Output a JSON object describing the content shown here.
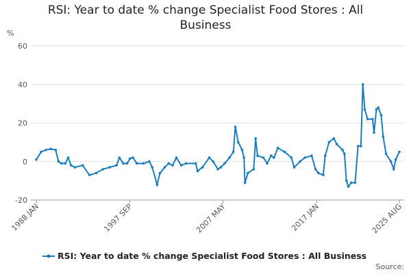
{
  "chart_data": {
    "type": "line",
    "title": "RSI: Year to date % change Specialist Food Stores : All Business",
    "y_label": "%",
    "source": "Source:",
    "xlim": [
      1988.0,
      2025.58
    ],
    "xticks": [
      {
        "value": 1988.0,
        "label": "1988 JAN"
      },
      {
        "value": 1997.67,
        "label": "1997 SEP"
      },
      {
        "value": 2007.33,
        "label": "2007 MAY"
      },
      {
        "value": 2017.0,
        "label": "2017 JAN"
      },
      {
        "value": 2025.58,
        "label": "2025 AUG"
      }
    ],
    "ylim": [
      -20,
      60
    ],
    "yticks": [
      -20,
      0,
      20,
      40,
      60
    ],
    "grid": true,
    "legend": "bottom",
    "x": [
      1988.0,
      1988.5,
      1989.0,
      1989.5,
      1990.0,
      1990.3,
      1990.6,
      1991.0,
      1991.3,
      1991.6,
      1992.0,
      1992.8,
      1993.5,
      1994.2,
      1994.9,
      1995.6,
      1996.3,
      1996.6,
      1997.0,
      1997.4,
      1997.7,
      1998.0,
      1998.4,
      1999.1,
      1999.7,
      2000.0,
      2000.5,
      2000.8,
      2001.3,
      2001.7,
      2002.1,
      2002.5,
      2003.0,
      2003.5,
      2004.5,
      2004.7,
      2005.2,
      2005.9,
      2006.3,
      2006.8,
      2007.1,
      2007.5,
      2008.0,
      2008.4,
      2008.6,
      2008.9,
      2009.3,
      2009.5,
      2009.6,
      2009.9,
      2010.5,
      2010.7,
      2010.9,
      2011.5,
      2011.9,
      2012.3,
      2012.6,
      2013.0,
      2013.7,
      2014.4,
      2014.7,
      2015.3,
      2015.8,
      2016.5,
      2016.9,
      2017.2,
      2017.7,
      2017.9,
      2018.3,
      2018.8,
      2019.1,
      2019.7,
      2019.9,
      2020.1,
      2020.3,
      2020.6,
      2021.0,
      2021.3,
      2021.6,
      2021.8,
      2022.0,
      2022.3,
      2022.8,
      2022.96,
      2023.2,
      2023.4,
      2023.7,
      2023.9,
      2024.2,
      2024.7,
      2025.0,
      2025.2,
      2025.58
    ],
    "series": [
      {
        "name": "RSI: Year to date % change Specialist Food Stores : All Business",
        "color": "#1a7dc0",
        "values": [
          1,
          5,
          6,
          6.5,
          6,
          0,
          -1,
          -1,
          2,
          -2,
          -3,
          -2,
          -7,
          -6,
          -4,
          -3,
          -2,
          2,
          -1,
          -1,
          1.5,
          2,
          -1,
          -1,
          0,
          -3,
          -12,
          -6,
          -3,
          -1,
          -2,
          2,
          -2,
          -1,
          -1,
          -5,
          -3,
          2,
          0,
          -4,
          -3,
          -1,
          2,
          5,
          18,
          10,
          6,
          2,
          -11,
          -6,
          -4,
          12,
          3,
          2,
          -1,
          3,
          2,
          7,
          5,
          2,
          -3,
          0,
          2,
          3,
          -4,
          -6,
          -7,
          3,
          10,
          12,
          9,
          6,
          4,
          -10,
          -13,
          -11,
          -11,
          8,
          8,
          40,
          27,
          22,
          22,
          15,
          27,
          28,
          24,
          13,
          4,
          0,
          -4,
          1,
          5
        ]
      }
    ]
  }
}
